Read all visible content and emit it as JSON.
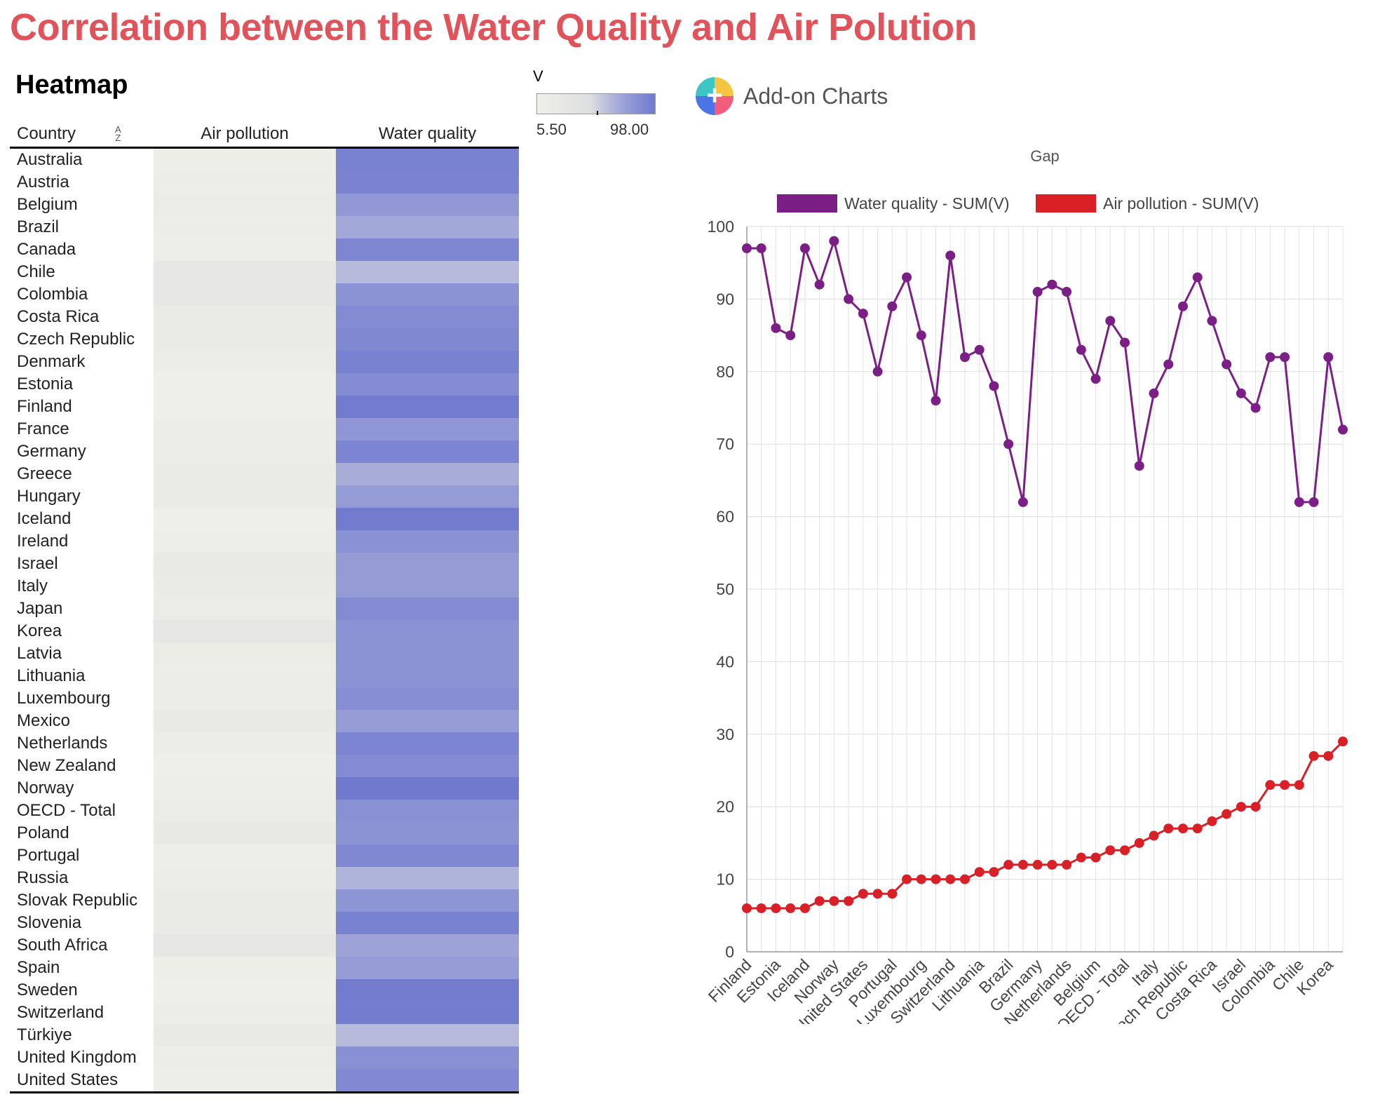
{
  "page_title": "Correlation between the Water Quality and Air Polution",
  "heatmap": {
    "title": "Heatmap",
    "legend": {
      "label": "V",
      "min": "5.50",
      "max": "98.00"
    },
    "columns": {
      "country": "Country",
      "air": "Air pollution",
      "water": "Water quality"
    },
    "sort_icon": "sort-alpha-icon",
    "rows": [
      {
        "country": "Australia",
        "air": 7,
        "water": 93
      },
      {
        "country": "Austria",
        "air": 12,
        "water": 92
      },
      {
        "country": "Belgium",
        "air": 13,
        "water": 79
      },
      {
        "country": "Brazil",
        "air": 12,
        "water": 70
      },
      {
        "country": "Canada",
        "air": 7,
        "water": 90
      },
      {
        "country": "Chile",
        "air": 23,
        "water": 62
      },
      {
        "country": "Colombia",
        "air": 23,
        "water": 82
      },
      {
        "country": "Costa Rica",
        "air": 18,
        "water": 87
      },
      {
        "country": "Czech Republic",
        "air": 17,
        "water": 89
      },
      {
        "country": "Denmark",
        "air": 10,
        "water": 93
      },
      {
        "country": "Estonia",
        "air": 6,
        "water": 86
      },
      {
        "country": "Finland",
        "air": 6,
        "water": 97
      },
      {
        "country": "France",
        "air": 12,
        "water": 80
      },
      {
        "country": "Germany",
        "air": 12,
        "water": 91
      },
      {
        "country": "Greece",
        "air": 16,
        "water": 68
      },
      {
        "country": "Hungary",
        "air": 16,
        "water": 77
      },
      {
        "country": "Iceland",
        "air": 6,
        "water": 97
      },
      {
        "country": "Ireland",
        "air": 7,
        "water": 83
      },
      {
        "country": "Israel",
        "air": 20,
        "water": 77
      },
      {
        "country": "Italy",
        "air": 16,
        "water": 77
      },
      {
        "country": "Japan",
        "air": 13,
        "water": 87
      },
      {
        "country": "Korea",
        "air": 27,
        "water": 82
      },
      {
        "country": "Latvia",
        "air": 13,
        "water": 82
      },
      {
        "country": "Lithuania",
        "air": 11,
        "water": 82
      },
      {
        "country": "Luxembourg",
        "air": 10,
        "water": 85
      },
      {
        "country": "Mexico",
        "air": 20,
        "water": 76
      },
      {
        "country": "Netherlands",
        "air": 12,
        "water": 91
      },
      {
        "country": "New Zealand",
        "air": 5,
        "water": 87
      },
      {
        "country": "Norway",
        "air": 7,
        "water": 98
      },
      {
        "country": "OECD - Total",
        "air": 14,
        "water": 84
      },
      {
        "country": "Poland",
        "air": 22,
        "water": 82
      },
      {
        "country": "Portugal",
        "air": 8,
        "water": 89
      },
      {
        "country": "Russia",
        "air": 11,
        "water": 65
      },
      {
        "country": "Slovak Republic",
        "air": 17,
        "water": 81
      },
      {
        "country": "Slovenia",
        "air": 17,
        "water": 93
      },
      {
        "country": "South Africa",
        "air": 27,
        "water": 72
      },
      {
        "country": "Spain",
        "air": 9,
        "water": 76
      },
      {
        "country": "Sweden",
        "air": 6,
        "water": 97
      },
      {
        "country": "Switzerland",
        "air": 10,
        "water": 96
      },
      {
        "country": "Türkiye",
        "air": 20,
        "water": 62
      },
      {
        "country": "United Kingdom",
        "air": 10,
        "water": 84
      },
      {
        "country": "United States",
        "air": 7,
        "water": 88
      }
    ]
  },
  "addon": {
    "label": "Add-on Charts",
    "icon": "add-on-charts-icon"
  },
  "chart_data": {
    "type": "line",
    "title": "Gap",
    "xlabel": "",
    "ylabel": "",
    "ylim": [
      0,
      100
    ],
    "yticks": [
      0,
      10,
      20,
      30,
      40,
      50,
      60,
      70,
      80,
      90,
      100
    ],
    "grid": true,
    "legend_position": "top",
    "categories": [
      "Finland",
      "",
      "Estonia",
      "",
      "Iceland",
      "",
      "Norway",
      "",
      "United States",
      "",
      "Portugal",
      "",
      "Luxembourg",
      "",
      "Switzerland",
      "",
      "Lithuania",
      "",
      "Brazil",
      "",
      "Germany",
      "",
      "Netherlands",
      "",
      "Belgium",
      "",
      "OECD - Total",
      "",
      "Italy",
      "",
      "Czech Republic",
      "",
      "Costa Rica",
      "",
      "Israel",
      "",
      "Colombia",
      "",
      "Chile",
      "",
      "Korea",
      ""
    ],
    "series": [
      {
        "name": "Water quality - SUM(V)",
        "color": "#7b1f86",
        "values": [
          97,
          97,
          86,
          85,
          97,
          92,
          98,
          90,
          88,
          80,
          89,
          93,
          85,
          76,
          96,
          82,
          83,
          78,
          70,
          62,
          91,
          92,
          91,
          83,
          79,
          87,
          84,
          67,
          77,
          81,
          89,
          93,
          87,
          81,
          77,
          75,
          82,
          82,
          62,
          62,
          82,
          72
        ]
      },
      {
        "name": "Air pollution - SUM(V)",
        "color": "#d92027",
        "values": [
          6,
          6,
          6,
          6,
          6,
          7,
          7,
          7,
          8,
          8,
          8,
          10,
          10,
          10,
          10,
          10,
          11,
          11,
          12,
          12,
          12,
          12,
          12,
          13,
          13,
          14,
          14,
          15,
          16,
          17,
          17,
          17,
          18,
          19,
          20,
          20,
          23,
          23,
          23,
          27,
          27,
          29
        ]
      }
    ]
  }
}
